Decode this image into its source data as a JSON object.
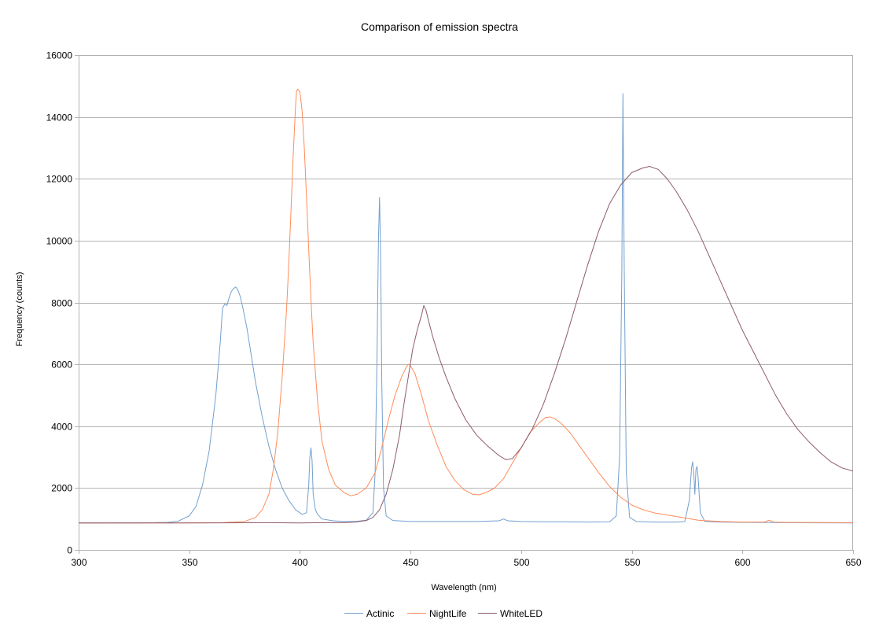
{
  "chart_data": {
    "type": "line",
    "title": "Comparison of emission spectra",
    "xlabel": "Wavelength (nm)",
    "ylabel": "Frequency (counts)",
    "xlim": [
      300,
      650
    ],
    "ylim": [
      0,
      16000
    ],
    "x_ticks": [
      300,
      350,
      400,
      450,
      500,
      550,
      600,
      650
    ],
    "y_ticks": [
      0,
      2000,
      4000,
      6000,
      8000,
      10000,
      12000,
      14000,
      16000
    ],
    "grid": "horizontal",
    "legend_position": "bottom",
    "series": [
      {
        "name": "Actinic",
        "color": "#729fcf",
        "points": [
          [
            300,
            870
          ],
          [
            330,
            875
          ],
          [
            340,
            890
          ],
          [
            345,
            930
          ],
          [
            350,
            1100
          ],
          [
            353,
            1400
          ],
          [
            356,
            2100
          ],
          [
            359,
            3200
          ],
          [
            362,
            5000
          ],
          [
            364,
            6700
          ],
          [
            365,
            7800
          ],
          [
            366,
            7950
          ],
          [
            367,
            7900
          ],
          [
            368,
            8150
          ],
          [
            369,
            8350
          ],
          [
            370,
            8450
          ],
          [
            371,
            8500
          ],
          [
            372,
            8400
          ],
          [
            373,
            8200
          ],
          [
            374,
            7900
          ],
          [
            376,
            7200
          ],
          [
            378,
            6300
          ],
          [
            380,
            5400
          ],
          [
            383,
            4300
          ],
          [
            386,
            3350
          ],
          [
            389,
            2600
          ],
          [
            392,
            2000
          ],
          [
            395,
            1600
          ],
          [
            398,
            1300
          ],
          [
            401,
            1150
          ],
          [
            403,
            1200
          ],
          [
            404,
            2100
          ],
          [
            404.5,
            3000
          ],
          [
            405,
            3300
          ],
          [
            405.5,
            2900
          ],
          [
            406,
            1800
          ],
          [
            407,
            1300
          ],
          [
            408,
            1150
          ],
          [
            410,
            1000
          ],
          [
            415,
            940
          ],
          [
            420,
            920
          ],
          [
            425,
            920
          ],
          [
            430,
            960
          ],
          [
            433,
            1200
          ],
          [
            434,
            2500
          ],
          [
            434.8,
            6000
          ],
          [
            435.5,
            10000
          ],
          [
            436,
            11400
          ],
          [
            436.5,
            9500
          ],
          [
            437,
            5500
          ],
          [
            437.8,
            2000
          ],
          [
            439,
            1100
          ],
          [
            442,
            950
          ],
          [
            450,
            920
          ],
          [
            460,
            920
          ],
          [
            470,
            920
          ],
          [
            480,
            920
          ],
          [
            490,
            940
          ],
          [
            492,
            1000
          ],
          [
            494,
            940
          ],
          [
            500,
            920
          ],
          [
            510,
            910
          ],
          [
            520,
            910
          ],
          [
            530,
            900
          ],
          [
            540,
            910
          ],
          [
            543,
            1100
          ],
          [
            544.5,
            3000
          ],
          [
            545.5,
            9000
          ],
          [
            546,
            14750
          ],
          [
            546.6,
            9000
          ],
          [
            547.5,
            2500
          ],
          [
            549,
            1050
          ],
          [
            552,
            920
          ],
          [
            560,
            900
          ],
          [
            570,
            900
          ],
          [
            574,
            920
          ],
          [
            576,
            1600
          ],
          [
            577,
            2650
          ],
          [
            577.5,
            2850
          ],
          [
            578,
            2500
          ],
          [
            578.5,
            1800
          ],
          [
            579,
            2600
          ],
          [
            579.5,
            2700
          ],
          [
            580,
            2300
          ],
          [
            581,
            1200
          ],
          [
            583,
            920
          ],
          [
            590,
            900
          ],
          [
            600,
            890
          ],
          [
            620,
            880
          ],
          [
            650,
            870
          ]
        ]
      },
      {
        "name": "NightLife",
        "color": "#ff8c5a",
        "points": [
          [
            300,
            870
          ],
          [
            350,
            875
          ],
          [
            365,
            880
          ],
          [
            375,
            920
          ],
          [
            380,
            1050
          ],
          [
            383,
            1300
          ],
          [
            386,
            1800
          ],
          [
            388,
            2600
          ],
          [
            390,
            3800
          ],
          [
            392,
            5600
          ],
          [
            394,
            7800
          ],
          [
            395,
            9300
          ],
          [
            396,
            11000
          ],
          [
            397,
            12800
          ],
          [
            398,
            14300
          ],
          [
            398.5,
            14850
          ],
          [
            399,
            14900
          ],
          [
            400,
            14800
          ],
          [
            401,
            14200
          ],
          [
            402,
            13000
          ],
          [
            403,
            11400
          ],
          [
            404,
            9700
          ],
          [
            405,
            8100
          ],
          [
            406,
            6700
          ],
          [
            408,
            4800
          ],
          [
            410,
            3500
          ],
          [
            413,
            2600
          ],
          [
            416,
            2100
          ],
          [
            420,
            1850
          ],
          [
            423,
            1750
          ],
          [
            426,
            1800
          ],
          [
            430,
            2000
          ],
          [
            434,
            2500
          ],
          [
            437,
            3300
          ],
          [
            440,
            4200
          ],
          [
            443,
            5000
          ],
          [
            446,
            5600
          ],
          [
            448,
            5900
          ],
          [
            449,
            6000
          ],
          [
            450,
            5950
          ],
          [
            452,
            5700
          ],
          [
            455,
            5000
          ],
          [
            458,
            4200
          ],
          [
            462,
            3400
          ],
          [
            466,
            2700
          ],
          [
            470,
            2250
          ],
          [
            474,
            1950
          ],
          [
            478,
            1800
          ],
          [
            481,
            1780
          ],
          [
            484,
            1850
          ],
          [
            488,
            2000
          ],
          [
            492,
            2300
          ],
          [
            496,
            2800
          ],
          [
            500,
            3300
          ],
          [
            504,
            3800
          ],
          [
            508,
            4100
          ],
          [
            511,
            4280
          ],
          [
            513,
            4300
          ],
          [
            515,
            4250
          ],
          [
            518,
            4100
          ],
          [
            522,
            3800
          ],
          [
            526,
            3400
          ],
          [
            530,
            3000
          ],
          [
            535,
            2500
          ],
          [
            540,
            2050
          ],
          [
            545,
            1700
          ],
          [
            550,
            1450
          ],
          [
            555,
            1300
          ],
          [
            560,
            1200
          ],
          [
            570,
            1080
          ],
          [
            580,
            960
          ],
          [
            590,
            920
          ],
          [
            600,
            900
          ],
          [
            610,
            900
          ],
          [
            612,
            960
          ],
          [
            614,
            900
          ],
          [
            620,
            890
          ],
          [
            650,
            880
          ]
        ]
      },
      {
        "name": "WhiteLED",
        "color": "#8e5a6c",
        "points": [
          [
            300,
            870
          ],
          [
            350,
            870
          ],
          [
            386,
            880
          ],
          [
            400,
            870
          ],
          [
            410,
            880
          ],
          [
            420,
            880
          ],
          [
            425,
            900
          ],
          [
            430,
            950
          ],
          [
            433,
            1050
          ],
          [
            436,
            1300
          ],
          [
            439,
            1800
          ],
          [
            442,
            2600
          ],
          [
            445,
            3700
          ],
          [
            447,
            4700
          ],
          [
            449,
            5600
          ],
          [
            451,
            6500
          ],
          [
            453,
            7100
          ],
          [
            455,
            7600
          ],
          [
            456,
            7900
          ],
          [
            457,
            7750
          ],
          [
            458,
            7450
          ],
          [
            460,
            6900
          ],
          [
            463,
            6200
          ],
          [
            466,
            5600
          ],
          [
            470,
            4900
          ],
          [
            475,
            4200
          ],
          [
            480,
            3700
          ],
          [
            485,
            3350
          ],
          [
            490,
            3050
          ],
          [
            493,
            2920
          ],
          [
            496,
            2950
          ],
          [
            500,
            3300
          ],
          [
            505,
            3900
          ],
          [
            510,
            4700
          ],
          [
            515,
            5700
          ],
          [
            520,
            6800
          ],
          [
            525,
            8000
          ],
          [
            530,
            9200
          ],
          [
            535,
            10300
          ],
          [
            540,
            11200
          ],
          [
            545,
            11800
          ],
          [
            550,
            12200
          ],
          [
            555,
            12350
          ],
          [
            558,
            12400
          ],
          [
            562,
            12300
          ],
          [
            566,
            12000
          ],
          [
            570,
            11600
          ],
          [
            575,
            11000
          ],
          [
            580,
            10300
          ],
          [
            585,
            9500
          ],
          [
            590,
            8700
          ],
          [
            595,
            7900
          ],
          [
            600,
            7100
          ],
          [
            605,
            6400
          ],
          [
            610,
            5700
          ],
          [
            615,
            5000
          ],
          [
            620,
            4400
          ],
          [
            625,
            3900
          ],
          [
            630,
            3500
          ],
          [
            635,
            3150
          ],
          [
            640,
            2850
          ],
          [
            645,
            2650
          ],
          [
            650,
            2550
          ]
        ]
      }
    ]
  }
}
